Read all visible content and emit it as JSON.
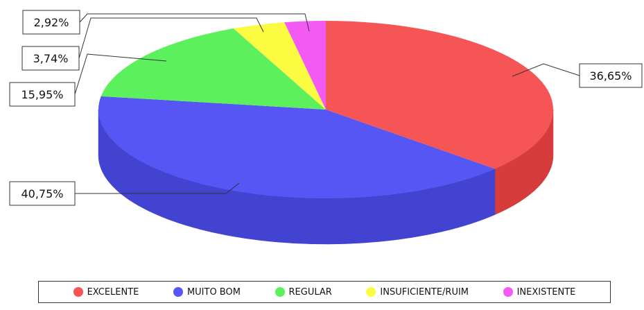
{
  "chart_data": {
    "type": "pie",
    "style": "3d",
    "categories": [
      "EXCELENTE",
      "MUITO BOM",
      "REGULAR",
      "INSUFICIENTE/RUIM",
      "INEXISTENTE"
    ],
    "values": [
      36.65,
      40.75,
      15.95,
      3.74,
      2.92
    ],
    "value_labels": [
      "36,65%",
      "40,75%",
      "15,95%",
      "3,74%",
      "2,92%"
    ],
    "colors": [
      "#f65555",
      "#5656f4",
      "#5cf05c",
      "#fbfb42",
      "#f35af3"
    ],
    "side_colors": [
      "#d63c3c",
      "#4343d2",
      "#44c844",
      "#d6d633",
      "#cc44cc"
    ],
    "legend_position": "bottom"
  }
}
